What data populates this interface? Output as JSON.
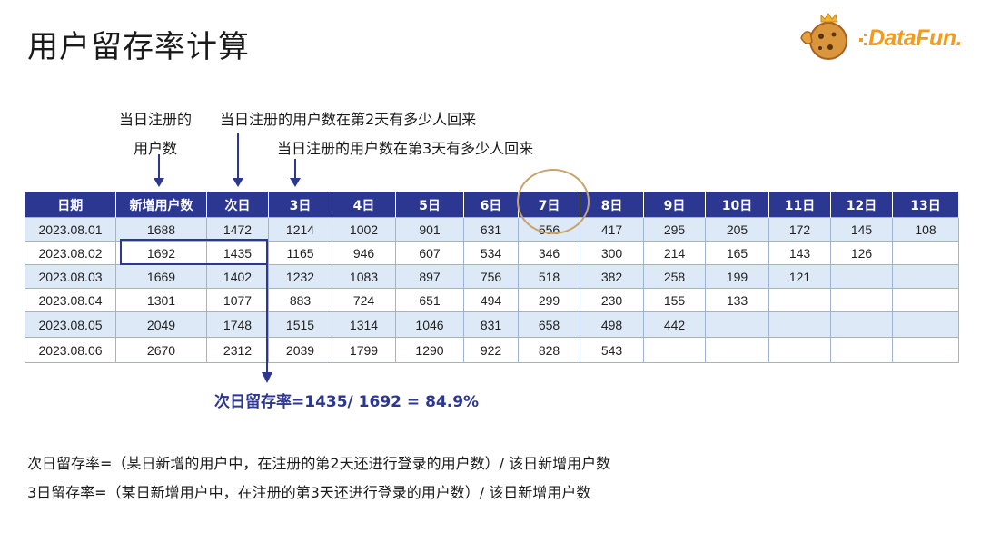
{
  "title": "用户留存率计算",
  "logo": {
    "text": "DataFun.",
    "accent": "#f39b1d"
  },
  "annotations": {
    "new_users_line1": "当日注册的",
    "new_users_line2": "用户数",
    "day2": "当日注册的用户数在第2天有多少人回来",
    "day3": "当日注册的用户数在第3天有多少人回来"
  },
  "table": {
    "headers": [
      "日期",
      "新增用户数",
      "次日",
      "3日",
      "4日",
      "5日",
      "6日",
      "7日",
      "8日",
      "9日",
      "10日",
      "11日",
      "12日",
      "13日"
    ],
    "rows": [
      [
        "2023.08.01",
        "1688",
        "1472",
        "1214",
        "1002",
        "901",
        "631",
        "556",
        "417",
        "295",
        "205",
        "172",
        "145",
        "108"
      ],
      [
        "2023.08.02",
        "1692",
        "1435",
        "1165",
        "946",
        "607",
        "534",
        "346",
        "300",
        "214",
        "165",
        "143",
        "126",
        ""
      ],
      [
        "2023.08.03",
        "1669",
        "1402",
        "1232",
        "1083",
        "897",
        "756",
        "518",
        "382",
        "258",
        "199",
        "121",
        "",
        ""
      ],
      [
        "2023.08.04",
        "1301",
        "1077",
        "883",
        "724",
        "651",
        "494",
        "299",
        "230",
        "155",
        "133",
        "",
        "",
        ""
      ],
      [
        "2023.08.05",
        "2049",
        "1748",
        "1515",
        "1314",
        "1046",
        "831",
        "658",
        "498",
        "442",
        "",
        "",
        "",
        ""
      ],
      [
        "2023.08.06",
        "2670",
        "2312",
        "2039",
        "1799",
        "1290",
        "922",
        "828",
        "543",
        "",
        "",
        "",
        "",
        ""
      ]
    ],
    "header_color": "#2c3791",
    "stripe_color": "#dde9f6"
  },
  "formula": "次日留存率=1435/ 1692 = 84.9%",
  "definitions": [
    "次日留存率=（某日新增的用户中，在注册的第2天还进行登录的用户数）/ 该日新增用户数",
    "3日留存率=（某日新增用户中，在注册的第3天还进行登录的用户数）/ 该日新增用户数"
  ]
}
